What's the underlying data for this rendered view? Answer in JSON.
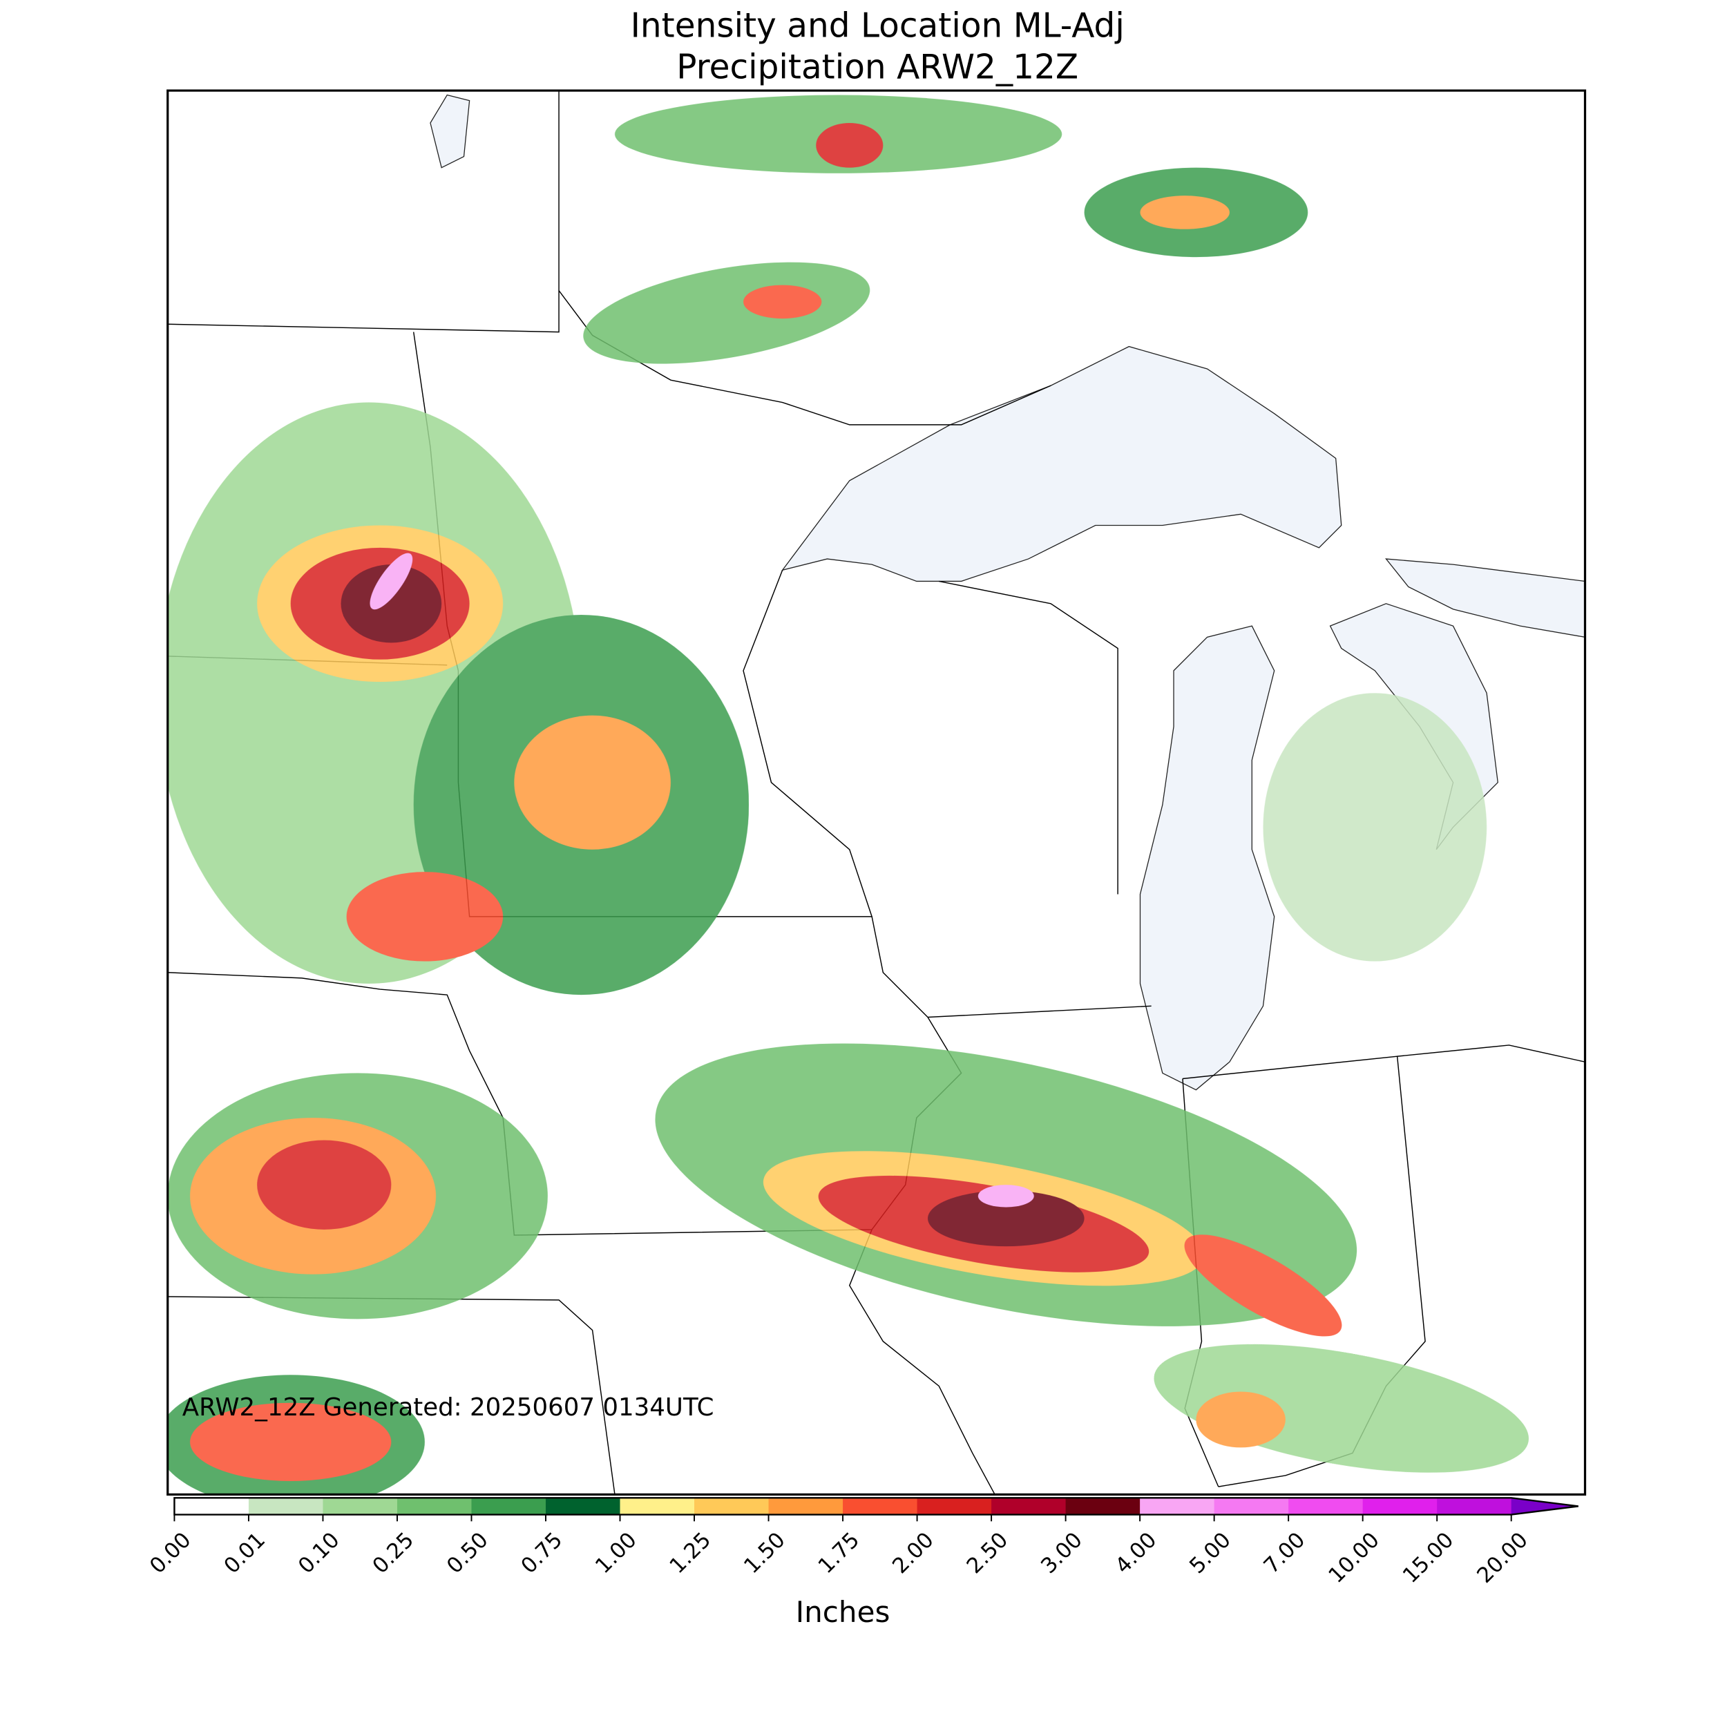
{
  "header": {
    "title": [
      "Intensity and Location ML-Adj",
      "Precipitation ARW2_12Z"
    ]
  },
  "annotation": "ARW2_12Z Generated: 20250607 0134UTC",
  "colorbar": {
    "label": "Inches",
    "ticks": [
      "0.00",
      "0.01",
      "0.10",
      "0.25",
      "0.50",
      "0.75",
      "1.00",
      "1.25",
      "1.50",
      "1.75",
      "2.00",
      "2.50",
      "3.00",
      "4.00",
      "5.00",
      "7.00",
      "10.00",
      "15.00",
      "20.00"
    ],
    "colors": [
      "#ffffff",
      "#c8e6c1",
      "#9fd894",
      "#6fc06e",
      "#3b9e4f",
      "#00622e",
      "#fff08a",
      "#ffc958",
      "#ff9a3c",
      "#f94f30",
      "#d9201f",
      "#b0002a",
      "#6b0010",
      "#f8a6f4",
      "#f579f2",
      "#f04cf0",
      "#e020ec",
      "#bf10dd"
    ],
    "extend_color": "#7a00c8"
  }
}
